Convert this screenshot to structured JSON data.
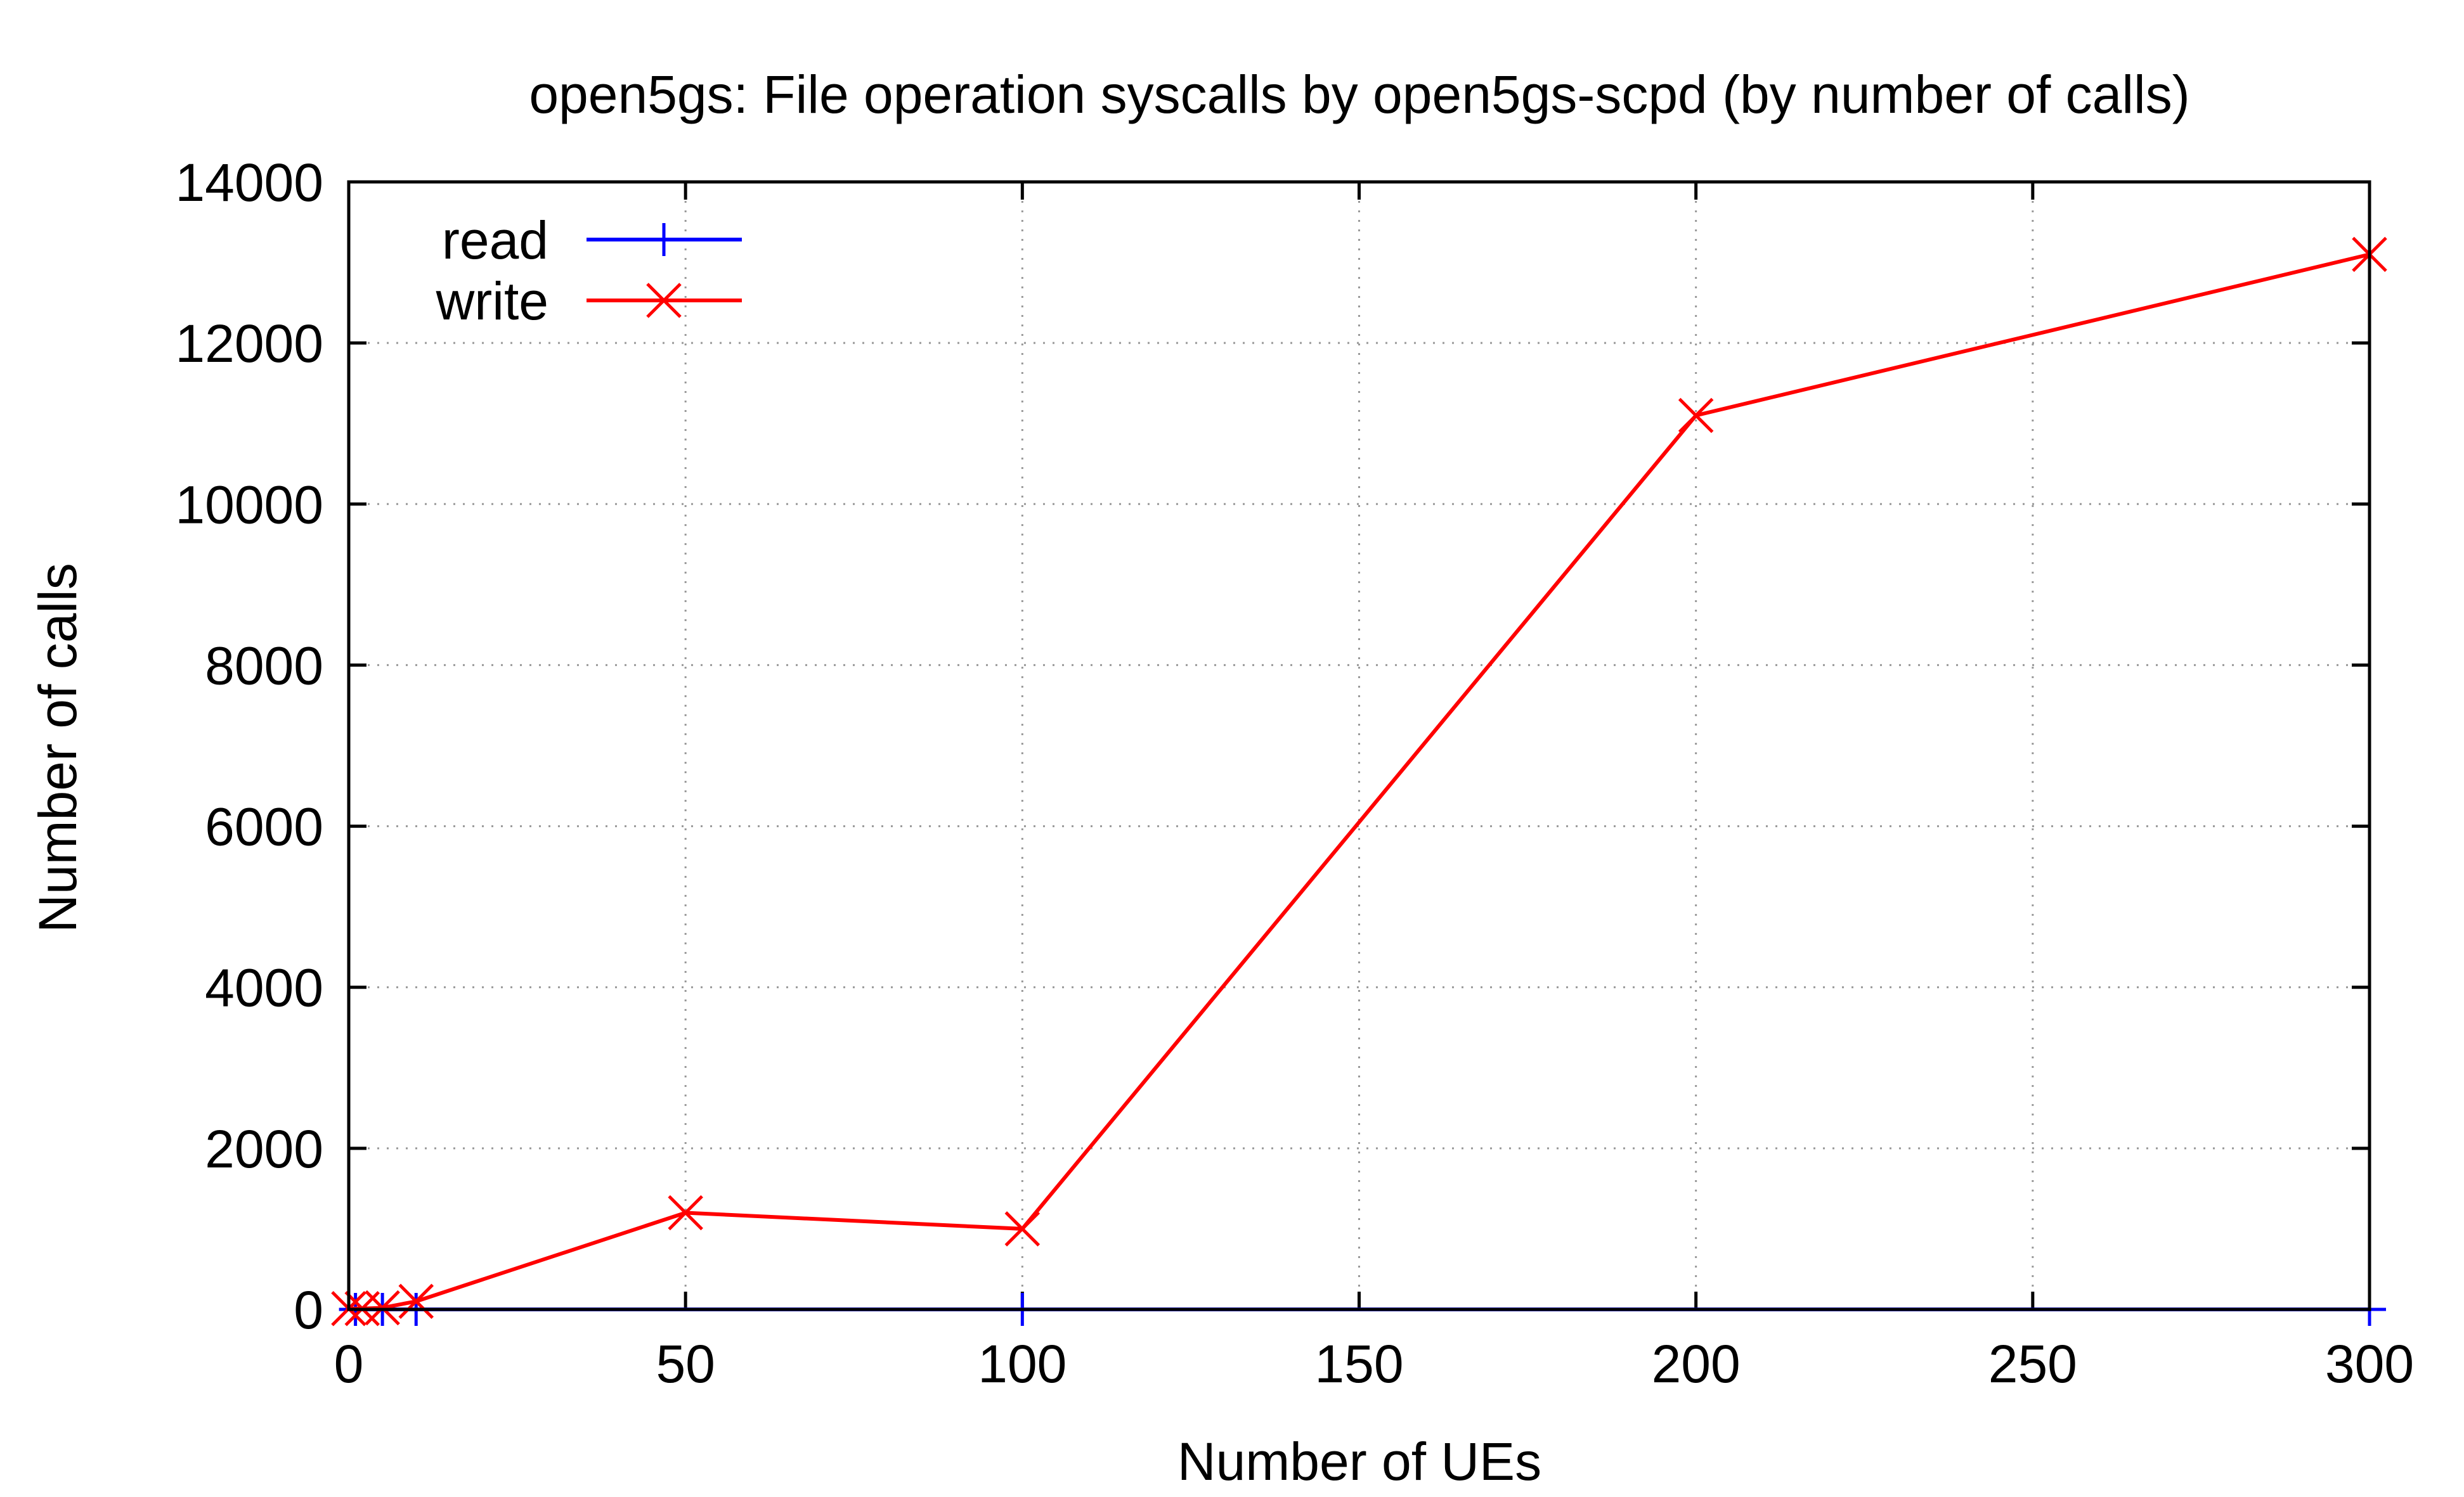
{
  "chart_data": {
    "type": "line",
    "title": "open5gs: File operation syscalls by open5gs-scpd (by number of calls)",
    "xlabel": "Number of UEs",
    "ylabel": "Number of calls",
    "xlim": [
      0,
      300
    ],
    "ylim": [
      0,
      14000
    ],
    "xticks": [
      0,
      50,
      100,
      150,
      200,
      250,
      300
    ],
    "yticks": [
      0,
      2000,
      4000,
      6000,
      8000,
      10000,
      12000,
      14000
    ],
    "grid": true,
    "legend_position": "top-left",
    "series": [
      {
        "name": "read",
        "color": "#0000ff",
        "marker": "plus",
        "x": [
          1,
          5,
          10,
          100,
          300
        ],
        "y": [
          0,
          0,
          0,
          0,
          0
        ]
      },
      {
        "name": "write",
        "color": "#ff0000",
        "marker": "cross",
        "x": [
          0,
          2,
          5,
          10,
          50,
          100,
          200,
          300
        ],
        "y": [
          10,
          10,
          20,
          100,
          1200,
          1000,
          11100,
          13100
        ]
      }
    ]
  }
}
